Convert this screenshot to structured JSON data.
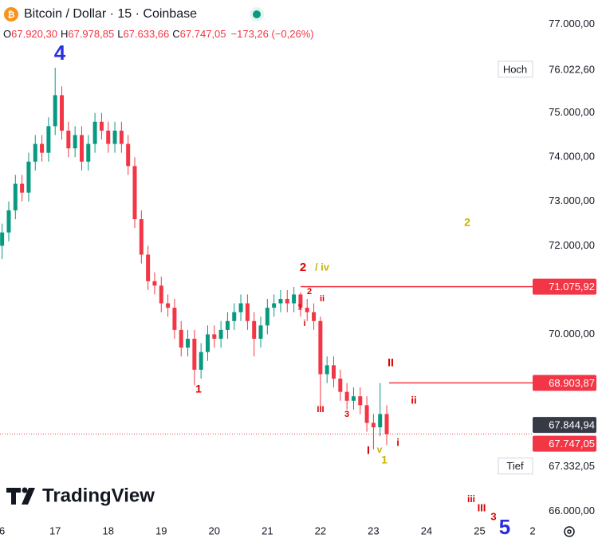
{
  "chart_data": {
    "type": "candlestick",
    "title": "Bitcoin / Dollar · 15 · Coinbase",
    "legend": [
      {
        "key": "O",
        "value": "67.920,30"
      },
      {
        "key": "H",
        "value": "67.978,85"
      },
      {
        "key": "L",
        "value": "67.633,66"
      },
      {
        "key": "C",
        "value": "67.747,05"
      }
    ],
    "change": "−173,26 (−0,26%)",
    "up_color": "#089981",
    "down_color": "#f23645",
    "x": [
      16,
      16.125,
      16.25,
      16.375,
      16.5,
      16.625,
      16.75,
      16.875,
      17,
      17.125,
      17.25,
      17.375,
      17.5,
      17.625,
      17.75,
      17.875,
      18,
      18.125,
      18.25,
      18.375,
      18.5,
      18.625,
      18.75,
      18.875,
      19,
      19.125,
      19.25,
      19.375,
      19.5,
      19.625,
      19.75,
      19.875,
      20,
      20.125,
      20.25,
      20.375,
      20.5,
      20.625,
      20.75,
      20.875,
      21,
      21.125,
      21.25,
      21.375,
      21.5,
      21.625,
      21.75,
      21.875,
      22,
      22.125,
      22.25,
      22.375,
      22.5,
      22.625,
      22.75,
      22.875,
      23,
      23.125,
      23.25
    ],
    "open": [
      72000,
      72300,
      72800,
      73400,
      73200,
      73900,
      74300,
      74100,
      74700,
      75400,
      74600,
      74200,
      74500,
      73900,
      74300,
      74800,
      74600,
      74300,
      74600,
      74300,
      73800,
      72600,
      71800,
      71200,
      71100,
      70700,
      70600,
      70100,
      69700,
      69900,
      69200,
      69600,
      70000,
      69900,
      70100,
      70300,
      70500,
      70700,
      70300,
      69900,
      70200,
      70600,
      70700,
      70800,
      70700,
      70900,
      70600,
      70500,
      70300,
      69100,
      69300,
      69000,
      68700,
      68500,
      68600,
      68400,
      68000,
      67900,
      68200
    ],
    "high": [
      72500,
      73000,
      73600,
      73600,
      74100,
      74500,
      74500,
      74900,
      76020,
      75600,
      74800,
      74700,
      74700,
      74500,
      75000,
      75000,
      74800,
      74800,
      74800,
      74500,
      74000,
      72800,
      72000,
      71400,
      71300,
      70900,
      70800,
      70300,
      70100,
      70100,
      69800,
      70200,
      70200,
      70300,
      70500,
      70700,
      70900,
      70900,
      70500,
      70400,
      70800,
      70900,
      71000,
      71000,
      71070,
      70950,
      70800,
      70700,
      70400,
      69500,
      69500,
      69200,
      68900,
      68800,
      68800,
      68600,
      68200,
      68900,
      68400
    ],
    "low": [
      71700,
      72100,
      72600,
      73000,
      73000,
      73700,
      73900,
      73900,
      74500,
      74400,
      74000,
      74000,
      73700,
      73700,
      74100,
      74400,
      74100,
      74100,
      74100,
      73600,
      72400,
      71600,
      71000,
      70900,
      70500,
      70400,
      69900,
      69500,
      69500,
      68850,
      69000,
      69400,
      69700,
      69700,
      69900,
      70100,
      70300,
      70100,
      69500,
      69700,
      70000,
      70400,
      70500,
      70500,
      70500,
      70400,
      70300,
      70100,
      68300,
      68900,
      68800,
      68500,
      68300,
      68300,
      68200,
      67800,
      67400,
      67700,
      67500
    ],
    "close": [
      72300,
      72800,
      73400,
      73200,
      73900,
      74300,
      74100,
      74700,
      75400,
      74600,
      74200,
      74500,
      73900,
      74300,
      74800,
      74600,
      74300,
      74600,
      74300,
      73800,
      72600,
      71800,
      71200,
      71100,
      70700,
      70600,
      70100,
      69700,
      69900,
      69200,
      69600,
      70000,
      69900,
      70100,
      70300,
      70500,
      70700,
      70300,
      69900,
      70200,
      70600,
      70700,
      70800,
      70700,
      70900,
      70600,
      70500,
      70300,
      69100,
      69300,
      69000,
      68700,
      68500,
      68600,
      68400,
      68000,
      67900,
      68200,
      67747
    ],
    "xlim": [
      15.96,
      26.0
    ],
    "xticks": [
      {
        "value": 16,
        "label": "6"
      },
      17,
      18,
      19,
      20,
      21,
      22,
      23,
      24,
      25,
      {
        "value": 26,
        "label": "2"
      }
    ],
    "ylim": [
      65850,
      77550
    ],
    "yticks": [
      {
        "value": 66000,
        "label": "66.000,00"
      },
      {
        "value": 70000,
        "label": "70.000,00"
      },
      {
        "value": 72000,
        "label": "72.000,00"
      },
      {
        "value": 73000,
        "label": "73.000,00"
      },
      {
        "value": 74000,
        "label": "74.000,00"
      },
      {
        "value": 75000,
        "label": "75.000,00"
      },
      {
        "value": 77000,
        "label": "77.000,00"
      }
    ],
    "price_lines": [
      {
        "value": 71075.92,
        "label": "71.075,92",
        "color": "#f23645"
      },
      {
        "value": 68903.87,
        "label": "68.903,87",
        "color": "#f23645"
      }
    ],
    "price_labels": [
      {
        "value": 67844.94,
        "label": "67.844,94",
        "color": "#363a45"
      },
      {
        "value": 67747.05,
        "label": "67.747,05",
        "color": "#f23645"
      }
    ],
    "high_mark": {
      "name": "Hoch",
      "value": 76022.6,
      "label": "76.022,60"
    },
    "low_mark": {
      "name": "Tief",
      "value": 67332.05,
      "label": "67.332,05"
    },
    "annotations": [
      {
        "text": "4",
        "color": "#2a2ee0"
      },
      {
        "text": "1",
        "color": "#d80000"
      },
      {
        "text": "2",
        "color": "#d80000"
      },
      {
        "text": "/ iv",
        "color": "#c8b400"
      },
      {
        "text": "2",
        "color": "#d80000"
      },
      {
        "text": "1",
        "color": "#d80000"
      },
      {
        "text": "ii",
        "color": "#d80000"
      },
      {
        "text": "i",
        "color": "#d80000"
      },
      {
        "text": "III",
        "color": "#d80000"
      },
      {
        "text": "3",
        "color": "#d80000"
      },
      {
        "text": "II",
        "color": "#d80000"
      },
      {
        "text": "ii",
        "color": "#d80000"
      },
      {
        "text": "i",
        "color": "#d80000"
      },
      {
        "text": "I",
        "color": "#d80000"
      },
      {
        "text": "v",
        "color": "#c8b400"
      },
      {
        "text": "1",
        "color": "#c8b400"
      },
      {
        "text": "2",
        "color": "#c8b400"
      },
      {
        "text": "iii",
        "color": "#d80000"
      },
      {
        "text": "III",
        "color": "#d80000"
      },
      {
        "text": "3",
        "color": "#d80000"
      },
      {
        "text": "5",
        "color": "#2a2ee0"
      }
    ],
    "brand": "TradingView"
  }
}
